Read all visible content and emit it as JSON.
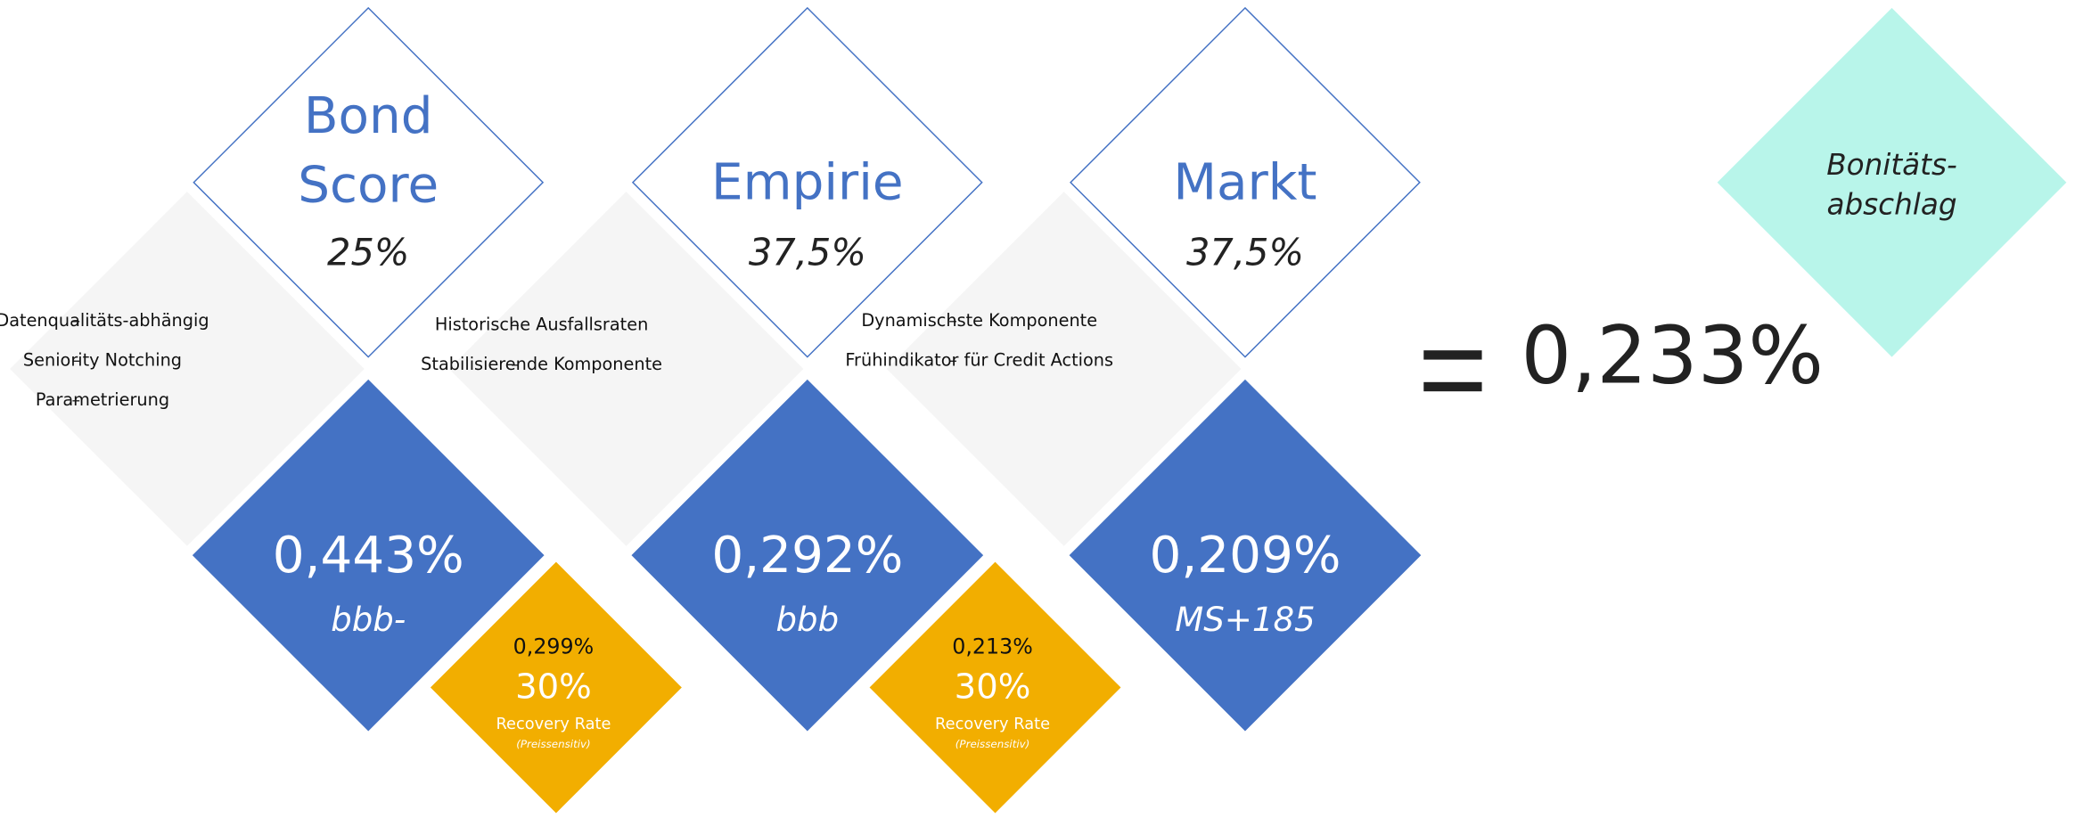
{
  "columns": [
    {
      "title": [
        "Bond",
        "Score"
      ],
      "weight": "25%",
      "bullets": [
        "Datenqualitäts-abhängig",
        "Seniority Notching",
        "Parametrierung"
      ],
      "value": "0,443%",
      "rating": "bbb-",
      "recovery": {
        "value": "0,299%",
        "rate": "30%",
        "label": "Recovery Rate",
        "note": "(Preissensitiv)"
      }
    },
    {
      "title": [
        "Empirie"
      ],
      "weight": "37,5%",
      "bullets": [
        "Historische Ausfallsraten",
        "Stabilisierende Komponente"
      ],
      "value": "0,292%",
      "rating": "bbb",
      "recovery": {
        "value": "0,213%",
        "rate": "30%",
        "label": "Recovery Rate",
        "note": "(Preissensitiv)"
      }
    },
    {
      "title": [
        "Markt"
      ],
      "weight": "37,5%",
      "bullets": [
        "Dynamischste Komponente",
        "Frühindikator für Credit Actions"
      ],
      "value": "0,209%",
      "rating": "MS+185"
    }
  ],
  "result": {
    "label": [
      "Bonitäts-",
      "abschlag"
    ],
    "value": "0,233%"
  }
}
